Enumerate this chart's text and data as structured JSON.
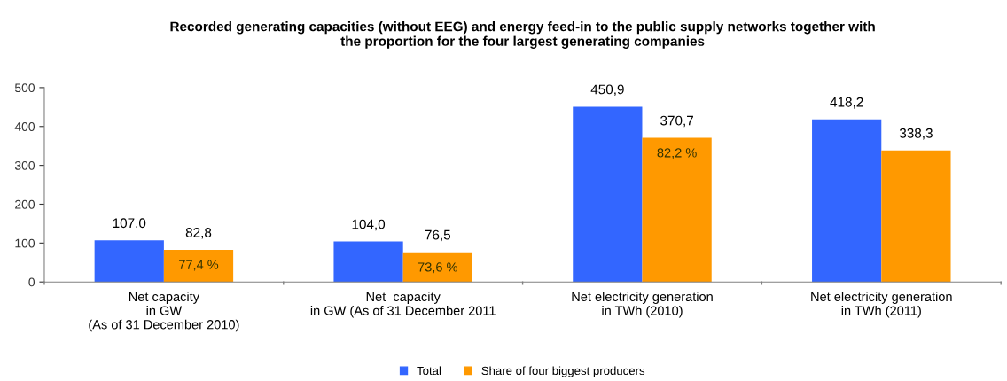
{
  "chart_data": {
    "type": "bar",
    "title": "Recorded generating capacities (without EEG) and energy feed-in to the public supply networks together with\nthe proportion for the four largest generating companies",
    "categories": [
      "Net capacity\nin GW\n(As of 31 December 2010)",
      "Net  capacity\nin GW (As of 31 December 2011",
      "Net electricity generation\nin TWh (2010)",
      "Net electricity generation\nin TWh (2011)"
    ],
    "series": [
      {
        "name": "Total",
        "color": "#3366ff",
        "values": [
          107.0,
          104.0,
          450.9,
          418.2
        ],
        "value_labels": [
          "107,0",
          "104,0",
          "450,9",
          "418,2"
        ]
      },
      {
        "name": "Share of four biggest producers",
        "color": "#ff9900",
        "values": [
          82.8,
          76.5,
          370.7,
          338.3
        ],
        "value_labels": [
          "82,8",
          "76,5",
          "370,7",
          "338,3"
        ]
      }
    ],
    "annotations": [
      {
        "text": "77,4 %",
        "x": "Net capacity\nin GW\n(As of 31 December 2010)",
        "y": 82.8
      },
      {
        "text": "73,6 %",
        "x": "Net  capacity\nin GW (As of 31 December 2011",
        "y": 76.5
      },
      {
        "text": "82,2 %",
        "x": "Net electricity generation\nin TWh (2010)",
        "y": 370.7
      }
    ],
    "ylim": [
      0,
      500
    ],
    "yticks": [
      0,
      100,
      200,
      300,
      400,
      500
    ],
    "grid": false,
    "legend": "bottom"
  }
}
